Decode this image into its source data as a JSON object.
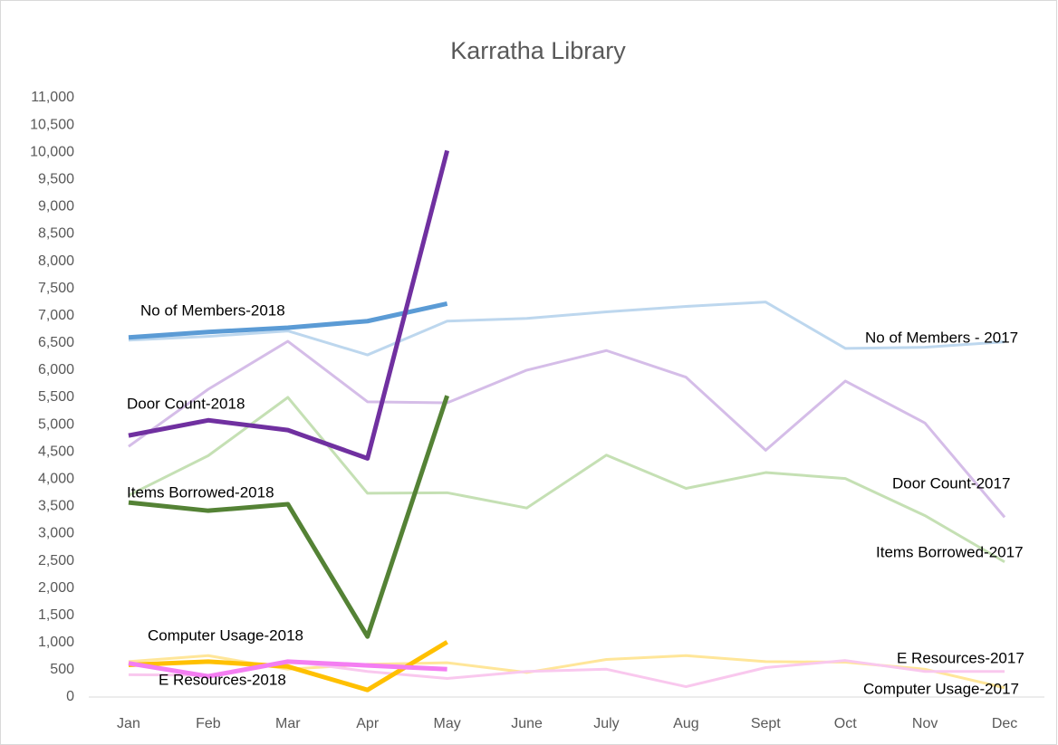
{
  "chart_data": {
    "type": "line",
    "title": "Karratha Library",
    "categories": [
      "Jan",
      "Feb",
      "Mar",
      "Apr",
      "May",
      "June",
      "July",
      "Aug",
      "Sept",
      "Oct",
      "Nov",
      "Dec"
    ],
    "ylim": [
      0,
      11000
    ],
    "yticks": [
      0,
      500,
      {
        "value": 1000,
        "label": "1,000"
      },
      {
        "value": 1500,
        "label": "1,500"
      },
      {
        "value": 2000,
        "label": "2,000"
      },
      {
        "value": 2500,
        "label": "2,500"
      },
      {
        "value": 3000,
        "label": "3,000"
      },
      {
        "value": 3500,
        "label": "3,500"
      },
      {
        "value": 4000,
        "label": "4,000"
      },
      {
        "value": 4500,
        "label": "4,500"
      },
      {
        "value": 5000,
        "label": "5,000"
      },
      {
        "value": 5500,
        "label": "5,500"
      },
      {
        "value": 6000,
        "label": "6,000"
      },
      {
        "value": 6500,
        "label": "6,500"
      },
      {
        "value": 7000,
        "label": "7,000"
      },
      {
        "value": 7500,
        "label": "7,500"
      },
      {
        "value": 8000,
        "label": "8,000"
      },
      {
        "value": 8500,
        "label": "8,500"
      },
      {
        "value": 9000,
        "label": "9,000"
      },
      {
        "value": 9500,
        "label": "9,500"
      },
      {
        "value": 10000,
        "label": "10,000"
      },
      {
        "value": 10500,
        "label": "10,500"
      },
      {
        "value": 11000,
        "label": "11,000"
      }
    ],
    "series": [
      {
        "name": "No of Members - 2017",
        "color": "#bdd7ee",
        "values": [
          6550,
          6620,
          6720,
          6280,
          6900,
          6950,
          7070,
          7170,
          7250,
          6400,
          6420,
          6520
        ]
      },
      {
        "name": "Door Count-2017",
        "color": "#d5bde8",
        "values": [
          4600,
          5650,
          6530,
          5420,
          5400,
          6000,
          6360,
          5870,
          4530,
          5800,
          5030,
          3300
        ]
      },
      {
        "name": "Items Borrowed-2017",
        "color": "#c5e0b4",
        "values": [
          3700,
          4430,
          5500,
          3740,
          3750,
          3470,
          4440,
          3830,
          4120,
          4010,
          3330,
          2480
        ]
      },
      {
        "name": "Computer Usage-2017",
        "color": "#ffe699",
        "values": [
          650,
          760,
          510,
          600,
          630,
          450,
          690,
          760,
          650,
          640,
          510,
          170
        ]
      },
      {
        "name": "E Resources-2017",
        "color": "#f9c8ee",
        "values": [
          410,
          400,
          660,
          470,
          340,
          470,
          510,
          190,
          540,
          670,
          470,
          470
        ]
      },
      {
        "name": "No of Members-2018",
        "color": "#5b9bd5",
        "values": [
          6600,
          6700,
          6780,
          6900,
          7220,
          null,
          null,
          null,
          null,
          null,
          null,
          null
        ]
      },
      {
        "name": "Door Count-2018",
        "color": "#7030a0",
        "values": [
          4800,
          5080,
          4900,
          4380,
          10030,
          null,
          null,
          null,
          null,
          null,
          null,
          null
        ]
      },
      {
        "name": "Items Borrowed-2018",
        "color": "#548235",
        "values": [
          3570,
          3420,
          3540,
          1110,
          5530,
          null,
          null,
          null,
          null,
          null,
          null,
          null
        ]
      },
      {
        "name": "Computer Usage-2018",
        "color": "#ffc000",
        "values": [
          590,
          650,
          560,
          130,
          1010,
          null,
          null,
          null,
          null,
          null,
          null,
          null
        ]
      },
      {
        "name": "E Resources-2018",
        "color": "#f47ef2",
        "values": [
          620,
          380,
          650,
          580,
          510,
          null,
          null,
          null,
          null,
          null,
          null,
          null
        ]
      }
    ]
  }
}
